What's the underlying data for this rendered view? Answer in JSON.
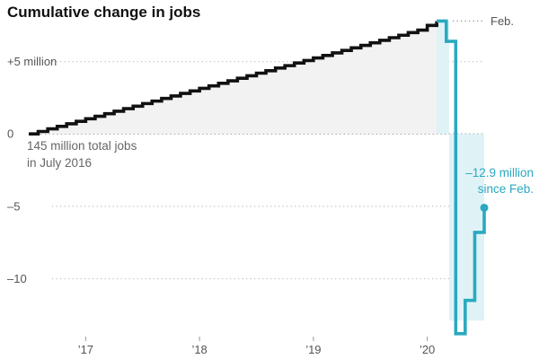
{
  "chart_data": {
    "type": "line",
    "title": "Cumulative change in jobs",
    "xlabel": "",
    "ylabel": "",
    "ylim": [
      -14,
      8.2
    ],
    "grid": true,
    "baseline_note": [
      "145 million total jobs",
      "in July 2016"
    ],
    "y_ticks": [
      {
        "value": 5,
        "label": "+5 million"
      },
      {
        "value": 0,
        "label": "0"
      },
      {
        "value": -5,
        "label": "–5"
      },
      {
        "value": -10,
        "label": "–10"
      }
    ],
    "x_ticks": [
      {
        "value": 2017,
        "label": "’17"
      },
      {
        "value": 2018,
        "label": "’18"
      },
      {
        "value": 2019,
        "label": "’19"
      },
      {
        "value": 2020,
        "label": "’20"
      }
    ],
    "reference_line": {
      "value": 7.8,
      "label": "Feb."
    },
    "annotation": {
      "lines": [
        "–12.9 million",
        "since Feb."
      ],
      "value": -12.9
    },
    "colors": {
      "pre_series": "#111111",
      "post_series": "#2aa9bf",
      "pre_fill": "#f2f2f2",
      "post_fill": "#dff3f7"
    },
    "series": [
      {
        "x": [
          2016.5,
          2016.583,
          2016.667,
          2016.75,
          2016.833,
          2016.917,
          2017.0,
          2017.083,
          2017.167,
          2017.25,
          2017.333,
          2017.417,
          2017.5,
          2017.583,
          2017.667,
          2017.75,
          2017.833,
          2017.917,
          2018.0,
          2018.083,
          2018.167,
          2018.25,
          2018.333,
          2018.417,
          2018.5,
          2018.583,
          2018.667,
          2018.75,
          2018.833,
          2018.917,
          2019.0,
          2019.083,
          2019.167,
          2019.25,
          2019.333,
          2019.417,
          2019.5,
          2019.583,
          2019.667,
          2019.75,
          2019.833,
          2019.917,
          2020.0,
          2020.083
        ],
        "values": [
          0,
          0.17,
          0.35,
          0.52,
          0.7,
          0.87,
          1.05,
          1.22,
          1.4,
          1.57,
          1.75,
          1.92,
          2.1,
          2.27,
          2.45,
          2.62,
          2.8,
          2.97,
          3.15,
          3.32,
          3.5,
          3.67,
          3.85,
          4.02,
          4.2,
          4.37,
          4.55,
          4.72,
          4.9,
          5.07,
          5.25,
          5.42,
          5.6,
          5.77,
          5.95,
          6.12,
          6.3,
          6.47,
          6.65,
          6.82,
          7.0,
          7.17,
          7.5,
          7.8
        ]
      },
      {
        "x": [
          2020.083,
          2020.167,
          2020.25,
          2020.333,
          2020.417,
          2020.5
        ],
        "values": [
          7.8,
          6.4,
          -13.8,
          -11.5,
          -6.8,
          -5.1
        ]
      }
    ]
  }
}
